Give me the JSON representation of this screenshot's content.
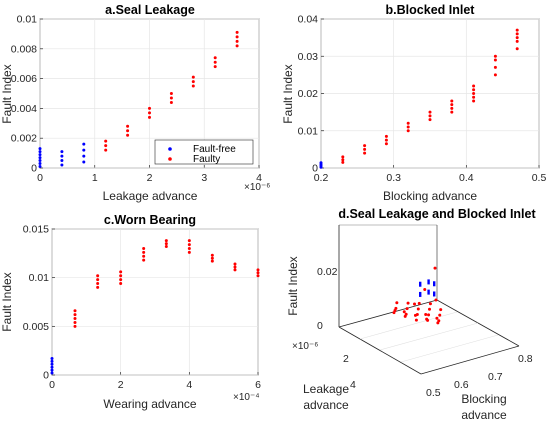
{
  "colors": {
    "fault_free": "#0000ff",
    "faulty": "#ff0000",
    "axes": "#262626",
    "grid": "#e6e6e6"
  },
  "chart_data": [
    {
      "id": "a",
      "type": "scatter",
      "title": "a.Seal Leakage",
      "xlabel": "Leakage advance",
      "ylabel": "Fault Index",
      "x_exponent": "×10⁻⁶",
      "xlim": [
        0,
        4
      ],
      "ylim": [
        0,
        0.01
      ],
      "xticks": [
        0,
        1,
        2,
        3,
        4
      ],
      "yticks": [
        0,
        0.002,
        0.004,
        0.006,
        0.008,
        0.01
      ],
      "xtick_labels": [
        "0",
        "1",
        "2",
        "3",
        "4"
      ],
      "ytick_labels": [
        "0",
        "0.002",
        "0.004",
        "0.006",
        "0.008",
        "0.01"
      ],
      "grid": true,
      "legend": {
        "placement": "bottom-right",
        "entries": [
          "Fault-free",
          "Faulty"
        ]
      },
      "series": [
        {
          "name": "Fault-free",
          "color": "#0000ff",
          "points": [
            [
              0,
              0.0001
            ],
            [
              0,
              0.0003
            ],
            [
              0,
              0.0005
            ],
            [
              0,
              0.0007
            ],
            [
              0,
              0.0009
            ],
            [
              0,
              0.0011
            ],
            [
              0,
              0.0013
            ],
            [
              0.4,
              0.0002
            ],
            [
              0.4,
              0.0005
            ],
            [
              0.4,
              0.0008
            ],
            [
              0.4,
              0.0011
            ],
            [
              0.8,
              0.0004
            ],
            [
              0.8,
              0.0008
            ],
            [
              0.8,
              0.0012
            ],
            [
              0.8,
              0.0016
            ]
          ]
        },
        {
          "name": "Faulty",
          "color": "#ff0000",
          "points": [
            [
              1.2,
              0.0012
            ],
            [
              1.2,
              0.0015
            ],
            [
              1.2,
              0.0018
            ],
            [
              1.6,
              0.0022
            ],
            [
              1.6,
              0.0025
            ],
            [
              1.6,
              0.0028
            ],
            [
              2.0,
              0.0034
            ],
            [
              2.0,
              0.0037
            ],
            [
              2.0,
              0.004
            ],
            [
              2.4,
              0.0044
            ],
            [
              2.4,
              0.0047
            ],
            [
              2.4,
              0.005
            ],
            [
              2.8,
              0.0055
            ],
            [
              2.8,
              0.0058
            ],
            [
              2.8,
              0.0061
            ],
            [
              3.2,
              0.0068
            ],
            [
              3.2,
              0.0071
            ],
            [
              3.2,
              0.0074
            ],
            [
              3.6,
              0.0082
            ],
            [
              3.6,
              0.0085
            ],
            [
              3.6,
              0.0088
            ],
            [
              3.6,
              0.0091
            ]
          ]
        }
      ]
    },
    {
      "id": "b",
      "type": "scatter",
      "title": "b.Blocked Inlet",
      "xlabel": "Blocking advance",
      "ylabel": "Fault Index",
      "x_exponent": "",
      "xlim": [
        0.2,
        0.5
      ],
      "ylim": [
        0,
        0.04
      ],
      "xticks": [
        0.2,
        0.3,
        0.4,
        0.5
      ],
      "yticks": [
        0,
        0.01,
        0.02,
        0.03,
        0.04
      ],
      "xtick_labels": [
        "0.2",
        "0.3",
        "0.4",
        "0.5"
      ],
      "ytick_labels": [
        "0",
        "0.01",
        "0.02",
        "0.03",
        "0.04"
      ],
      "grid": true,
      "series": [
        {
          "name": "Fault-free",
          "color": "#0000ff",
          "points": [
            [
              0.2,
              0.0002
            ],
            [
              0.2,
              0.0006
            ],
            [
              0.2,
              0.001
            ],
            [
              0.2,
              0.0014
            ]
          ]
        },
        {
          "name": "Faulty",
          "color": "#ff0000",
          "points": [
            [
              0.23,
              0.0015
            ],
            [
              0.23,
              0.0022
            ],
            [
              0.23,
              0.003
            ],
            [
              0.26,
              0.004
            ],
            [
              0.26,
              0.005
            ],
            [
              0.26,
              0.006
            ],
            [
              0.29,
              0.0065
            ],
            [
              0.29,
              0.0075
            ],
            [
              0.29,
              0.0085
            ],
            [
              0.32,
              0.01
            ],
            [
              0.32,
              0.011
            ],
            [
              0.32,
              0.012
            ],
            [
              0.35,
              0.013
            ],
            [
              0.35,
              0.014
            ],
            [
              0.35,
              0.015
            ],
            [
              0.38,
              0.015
            ],
            [
              0.38,
              0.016
            ],
            [
              0.38,
              0.017
            ],
            [
              0.38,
              0.018
            ],
            [
              0.41,
              0.018
            ],
            [
              0.41,
              0.019
            ],
            [
              0.41,
              0.02
            ],
            [
              0.41,
              0.021
            ],
            [
              0.41,
              0.022
            ],
            [
              0.44,
              0.025
            ],
            [
              0.44,
              0.027
            ],
            [
              0.44,
              0.029
            ],
            [
              0.44,
              0.03
            ],
            [
              0.47,
              0.032
            ],
            [
              0.47,
              0.034
            ],
            [
              0.47,
              0.035
            ],
            [
              0.47,
              0.036
            ],
            [
              0.47,
              0.037
            ]
          ]
        }
      ]
    },
    {
      "id": "c",
      "type": "scatter",
      "title": "c.Worn Bearing",
      "xlabel": "Wearing advance",
      "ylabel": "Fault Index",
      "x_exponent": "×10⁻⁴",
      "xlim": [
        0,
        6
      ],
      "ylim": [
        0,
        0.015
      ],
      "xticks": [
        0,
        2,
        4,
        6
      ],
      "yticks": [
        0,
        0.005,
        0.01,
        0.015
      ],
      "xtick_labels": [
        "0",
        "2",
        "4",
        "6"
      ],
      "ytick_labels": [
        "0",
        "0.005",
        "0.01",
        "0.015"
      ],
      "grid": true,
      "series": [
        {
          "name": "Fault-free",
          "color": "#0000ff",
          "points": [
            [
              0,
              0.0002
            ],
            [
              0,
              0.0005
            ],
            [
              0,
              0.0008
            ],
            [
              0,
              0.0011
            ],
            [
              0,
              0.0014
            ],
            [
              0,
              0.0017
            ]
          ]
        },
        {
          "name": "Faulty",
          "color": "#ff0000",
          "points": [
            [
              0.67,
              0.005
            ],
            [
              0.67,
              0.0054
            ],
            [
              0.67,
              0.0058
            ],
            [
              0.67,
              0.0062
            ],
            [
              0.67,
              0.0066
            ],
            [
              1.33,
              0.009
            ],
            [
              1.33,
              0.0094
            ],
            [
              1.33,
              0.0098
            ],
            [
              1.33,
              0.0102
            ],
            [
              2.0,
              0.0094
            ],
            [
              2.0,
              0.0098
            ],
            [
              2.0,
              0.0102
            ],
            [
              2.0,
              0.0106
            ],
            [
              2.67,
              0.0118
            ],
            [
              2.67,
              0.0122
            ],
            [
              2.67,
              0.0126
            ],
            [
              2.67,
              0.013
            ],
            [
              3.33,
              0.0132
            ],
            [
              3.33,
              0.0135
            ],
            [
              3.33,
              0.0138
            ],
            [
              4.0,
              0.0126
            ],
            [
              4.0,
              0.013
            ],
            [
              4.0,
              0.0134
            ],
            [
              4.0,
              0.0138
            ],
            [
              4.67,
              0.0117
            ],
            [
              4.67,
              0.012
            ],
            [
              4.67,
              0.0123
            ],
            [
              5.33,
              0.0108
            ],
            [
              5.33,
              0.0111
            ],
            [
              5.33,
              0.0114
            ],
            [
              6.0,
              0.0102
            ],
            [
              6.0,
              0.0105
            ],
            [
              6.0,
              0.0108
            ]
          ]
        }
      ]
    },
    {
      "id": "d",
      "type": "scatter",
      "title": "d.Seal Leakage and Blocked Inlet",
      "xlabel": "Blocking advance",
      "ylabel": "Leakage advance",
      "zlabel": "Fault Index",
      "y_exponent": "×10⁻⁶",
      "xlim": [
        0.45,
        0.8
      ],
      "ylim": [
        0,
        4
      ],
      "zlim": [
        0,
        0.03
      ],
      "xticks": [
        0.5,
        0.6,
        0.7,
        0.8
      ],
      "yticks": [
        2,
        4
      ],
      "zticks": [
        0,
        0.02
      ],
      "xtick_labels": [
        "0.5",
        "0.6",
        "0.7",
        "0.8"
      ],
      "ytick_labels": [
        "2",
        "4"
      ],
      "ztick_labels": [
        "0",
        "0.02"
      ],
      "grid": true,
      "series": [
        {
          "name": "Fault-free",
          "color": "#0000ff",
          "points": [
            [
              0.74,
              0,
              0.003
            ],
            [
              0.74,
              0,
              0.006
            ],
            [
              0.77,
              0,
              0.003
            ],
            [
              0.77,
              0,
              0.006
            ],
            [
              0.79,
              0,
              0.002
            ],
            [
              0.79,
              0,
              0.005
            ]
          ]
        },
        {
          "name": "Faulty",
          "color": "#ff0000",
          "points": [
            [
              0.62,
              0.5,
              0.005
            ],
            [
              0.66,
              0.5,
              0.004
            ],
            [
              0.7,
              0.5,
              0.003
            ],
            [
              0.74,
              0.5,
              0.002
            ],
            [
              0.58,
              1.0,
              0.006
            ],
            [
              0.62,
              1.0,
              0.005
            ],
            [
              0.66,
              1.0,
              0.004
            ],
            [
              0.7,
              1.0,
              0.003
            ],
            [
              0.74,
              1.0,
              0.002
            ],
            [
              0.54,
              1.5,
              0.008
            ],
            [
              0.58,
              1.5,
              0.006
            ],
            [
              0.62,
              1.5,
              0.005
            ],
            [
              0.66,
              1.5,
              0.004
            ],
            [
              0.7,
              1.5,
              0.003
            ],
            [
              0.5,
              2.0,
              0.01
            ],
            [
              0.54,
              2.0,
              0.008
            ],
            [
              0.58,
              2.0,
              0.006
            ],
            [
              0.62,
              2.0,
              0.005
            ],
            [
              0.66,
              2.0,
              0.004
            ],
            [
              0.5,
              2.5,
              0.012
            ],
            [
              0.54,
              2.5,
              0.01
            ],
            [
              0.58,
              2.5,
              0.008
            ],
            [
              0.62,
              2.5,
              0.006
            ],
            [
              0.5,
              3.0,
              0.016
            ],
            [
              0.54,
              3.0,
              0.012
            ],
            [
              0.58,
              3.0,
              0.01
            ],
            [
              0.5,
              3.5,
              0.022
            ],
            [
              0.54,
              3.5,
              0.018
            ],
            [
              0.5,
              4.0,
              0.03
            ]
          ]
        }
      ]
    }
  ]
}
